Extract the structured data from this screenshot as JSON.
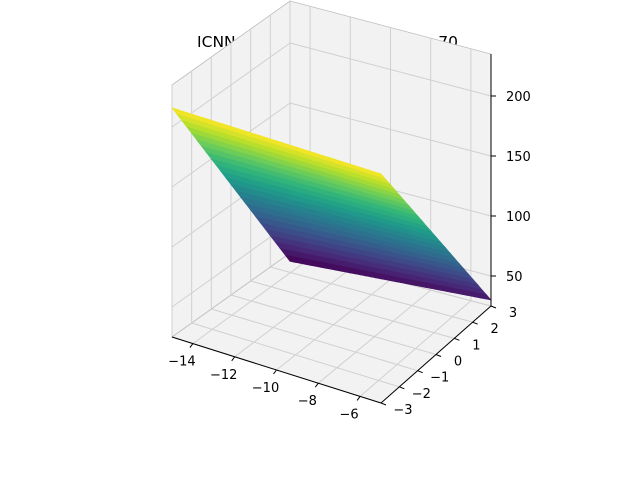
{
  "chart_data": {
    "type": "surface3d",
    "title": "ICNNs on function bukin at t = 70",
    "xlabel": "",
    "ylabel": "",
    "zlabel": "",
    "x_ticks": [
      -14,
      -12,
      -10,
      -8,
      -6
    ],
    "y_ticks": [
      -3,
      -2,
      -1,
      0,
      1,
      2,
      3
    ],
    "z_ticks": [
      50,
      100,
      150,
      200
    ],
    "x_tick_labels": [
      "−14",
      "−12",
      "−10",
      "−8",
      "−6"
    ],
    "y_tick_labels": [
      "−3",
      "−2",
      "−1",
      "0",
      "1",
      "2",
      "3"
    ],
    "z_tick_labels": [
      "50",
      "100",
      "150",
      "200"
    ],
    "xlim": [
      -15,
      -5
    ],
    "ylim": [
      -3,
      3
    ],
    "zlim": [
      25,
      235
    ],
    "x": [
      -15,
      -5
    ],
    "y": [
      -3,
      3
    ],
    "z": [
      [
        216,
        216
      ],
      [
        18,
        30
      ]
    ],
    "colormap": "viridis",
    "grid": true,
    "pane_color": "#f2f2f2",
    "grid_color": "#d0d0d0"
  }
}
